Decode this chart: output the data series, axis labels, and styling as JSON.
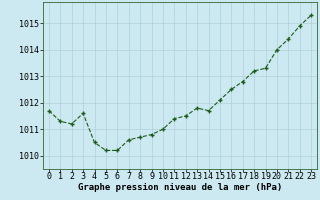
{
  "x": [
    0,
    1,
    2,
    3,
    4,
    5,
    6,
    7,
    8,
    9,
    10,
    11,
    12,
    13,
    14,
    15,
    16,
    17,
    18,
    19,
    20,
    21,
    22,
    23
  ],
  "y": [
    1011.7,
    1011.3,
    1011.2,
    1011.6,
    1010.5,
    1010.2,
    1010.2,
    1010.6,
    1010.7,
    1010.8,
    1011.0,
    1011.4,
    1011.5,
    1011.8,
    1011.7,
    1012.1,
    1012.5,
    1012.8,
    1013.2,
    1013.3,
    1014.0,
    1014.4,
    1014.9,
    1015.3
  ],
  "ylim": [
    1009.5,
    1015.8
  ],
  "yticks": [
    1010,
    1011,
    1012,
    1013,
    1014,
    1015
  ],
  "xticks": [
    0,
    1,
    2,
    3,
    4,
    5,
    6,
    7,
    8,
    9,
    10,
    11,
    12,
    13,
    14,
    15,
    16,
    17,
    18,
    19,
    20,
    21,
    22,
    23
  ],
  "line_color": "#1a5c1a",
  "marker_color": "#1a5c1a",
  "bg_color": "#cce8f0",
  "grid_color": "#b0d0d8",
  "xlabel": "Graphe pression niveau de la mer (hPa)",
  "xlabel_fontsize": 6.5,
  "tick_fontsize": 6.0
}
